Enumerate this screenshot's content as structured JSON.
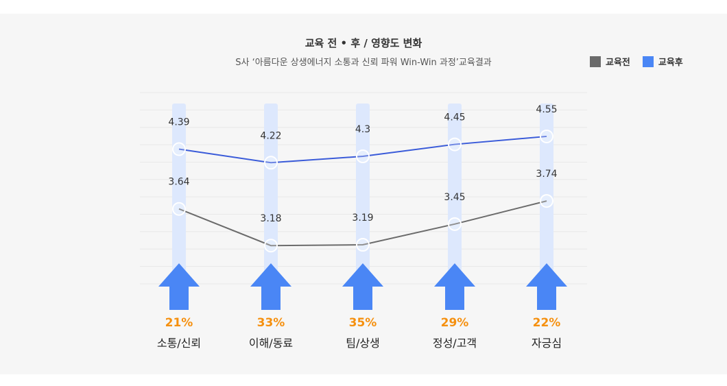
{
  "chart_data": {
    "type": "line",
    "title": "교육 전 • 후 / 영향도 변화",
    "subtitle": "S사 ‘아름다운 상생에너지 소통과 신뢰 파워 Win-Win 과정’교육결과",
    "categories": [
      "소통/신뢰",
      "이해/동료",
      "팀/상생",
      "정성/고객",
      "자긍심"
    ],
    "series": [
      {
        "name": "교육전",
        "color": "#6b6b6b",
        "values": [
          3.64,
          3.18,
          3.19,
          3.45,
          3.74
        ]
      },
      {
        "name": "교육후",
        "color": "#3a5bd9",
        "values": [
          4.39,
          4.22,
          4.3,
          4.45,
          4.55
        ]
      }
    ],
    "value_labels_before": [
      "3.64",
      "3.18",
      "3.19",
      "3.45",
      "3.74"
    ],
    "value_labels_after": [
      "4.39",
      "4.22",
      "4.3",
      "4.45",
      "4.55"
    ],
    "improvement_labels": [
      "21%",
      "33%",
      "35%",
      "29%",
      "22%"
    ],
    "ylim": [
      2.7,
      5.1
    ],
    "grid": true,
    "legend": {
      "position": "top-right",
      "before_color": "#6b6b6b",
      "after_color": "#4a86f5"
    },
    "colors": {
      "column": "#dde8fd",
      "arrow": "#4a86f5",
      "percent": "#f5900f",
      "after_line": "#3a5bd9",
      "before_line": "#6b6b6b"
    }
  }
}
